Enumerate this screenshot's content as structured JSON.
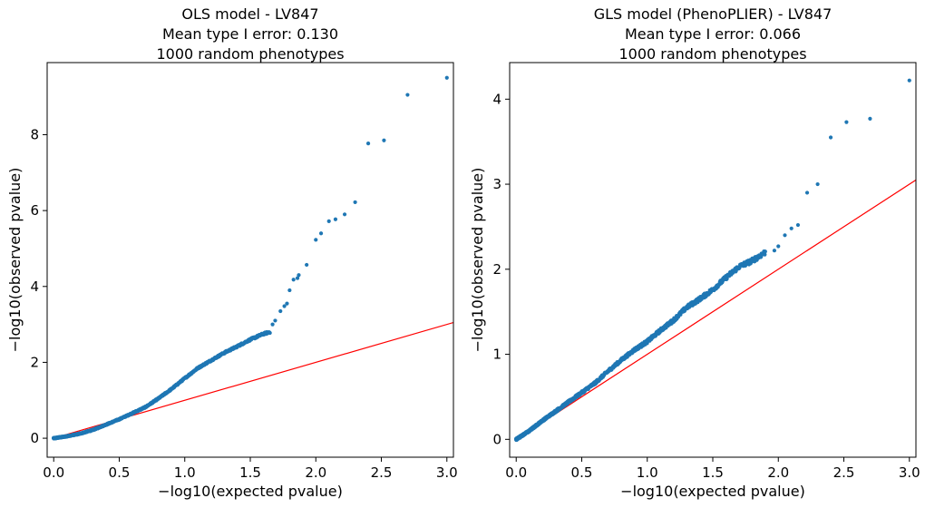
{
  "chart_data": [
    {
      "type": "scatter",
      "title_lines": [
        "OLS model - LV847",
        "Mean type I error: 0.130",
        "1000 random phenotypes"
      ],
      "xlabel": "−log10(expected pvalue)",
      "ylabel": "−log10(observed pvalue)",
      "xlim": [
        -0.05,
        3.05
      ],
      "ylim": [
        -0.5,
        9.9
      ],
      "xticks": [
        0,
        0.5,
        1,
        1.5,
        2,
        2.5,
        3
      ],
      "xtick_labels": [
        "0.0",
        "0.5",
        "1.0",
        "1.5",
        "2.0",
        "2.5",
        "3.0"
      ],
      "yticks": [
        0,
        2,
        4,
        6,
        8
      ],
      "ytick_labels": [
        "0",
        "2",
        "4",
        "6",
        "8"
      ],
      "grid": false,
      "reference_line": {
        "color": "#ff0000",
        "from": [
          0,
          0
        ],
        "to": [
          3.05,
          3.05
        ]
      },
      "point_color": "#1f77b4",
      "curve": [
        [
          0,
          0
        ],
        [
          0.1,
          0.05
        ],
        [
          0.2,
          0.12
        ],
        [
          0.3,
          0.22
        ],
        [
          0.4,
          0.36
        ],
        [
          0.5,
          0.5
        ],
        [
          0.6,
          0.66
        ],
        [
          0.7,
          0.82
        ],
        [
          0.8,
          1.05
        ],
        [
          0.9,
          1.3
        ],
        [
          1.0,
          1.58
        ],
        [
          1.1,
          1.85
        ],
        [
          1.2,
          2.05
        ],
        [
          1.3,
          2.25
        ],
        [
          1.4,
          2.42
        ],
        [
          1.5,
          2.6
        ],
        [
          1.6,
          2.75
        ],
        [
          1.65,
          2.8
        ]
      ],
      "tail": [
        [
          1.67,
          3.0
        ],
        [
          1.69,
          3.1
        ],
        [
          1.73,
          3.35
        ],
        [
          1.76,
          3.48
        ],
        [
          1.78,
          3.55
        ],
        [
          1.8,
          3.9
        ],
        [
          1.83,
          4.18
        ],
        [
          1.86,
          4.22
        ],
        [
          1.87,
          4.3
        ],
        [
          1.93,
          4.57
        ],
        [
          2.0,
          5.23
        ],
        [
          2.04,
          5.4
        ],
        [
          2.1,
          5.72
        ],
        [
          2.15,
          5.77
        ],
        [
          2.22,
          5.9
        ],
        [
          2.3,
          6.22
        ],
        [
          2.4,
          7.77
        ],
        [
          2.52,
          7.85
        ],
        [
          2.7,
          9.05
        ],
        [
          3.0,
          9.5
        ]
      ]
    },
    {
      "type": "scatter",
      "title_lines": [
        "GLS model (PhenoPLIER) - LV847",
        "Mean type I error: 0.066",
        "1000 random phenotypes"
      ],
      "xlabel": "−log10(expected pvalue)",
      "ylabel": "−log10(observed pvalue)",
      "xlim": [
        -0.05,
        3.05
      ],
      "ylim": [
        -0.21,
        4.43
      ],
      "xticks": [
        0,
        0.5,
        1,
        1.5,
        2,
        2.5,
        3
      ],
      "xtick_labels": [
        "0.0",
        "0.5",
        "1.0",
        "1.5",
        "2.0",
        "2.5",
        "3.0"
      ],
      "yticks": [
        0,
        1,
        2,
        3,
        4
      ],
      "ytick_labels": [
        "0",
        "1",
        "2",
        "3",
        "4"
      ],
      "grid": false,
      "reference_line": {
        "color": "#ff0000",
        "from": [
          0,
          0
        ],
        "to": [
          3.05,
          3.05
        ]
      },
      "point_color": "#1f77b4",
      "curve": [
        [
          0,
          0
        ],
        [
          0.1,
          0.1
        ],
        [
          0.2,
          0.22
        ],
        [
          0.3,
          0.33
        ],
        [
          0.4,
          0.44
        ],
        [
          0.5,
          0.55
        ],
        [
          0.6,
          0.66
        ],
        [
          0.7,
          0.8
        ],
        [
          0.8,
          0.93
        ],
        [
          0.9,
          1.05
        ],
        [
          1.0,
          1.15
        ],
        [
          1.1,
          1.28
        ],
        [
          1.2,
          1.4
        ],
        [
          1.3,
          1.55
        ],
        [
          1.4,
          1.65
        ],
        [
          1.5,
          1.76
        ],
        [
          1.6,
          1.9
        ],
        [
          1.7,
          2.03
        ],
        [
          1.8,
          2.1
        ],
        [
          1.9,
          2.2
        ]
      ],
      "tail": [
        [
          1.97,
          2.22
        ],
        [
          2.0,
          2.27
        ],
        [
          2.05,
          2.4
        ],
        [
          2.1,
          2.48
        ],
        [
          2.15,
          2.52
        ],
        [
          2.22,
          2.9
        ],
        [
          2.3,
          3.0
        ],
        [
          2.4,
          3.55
        ],
        [
          2.52,
          3.73
        ],
        [
          2.7,
          3.77
        ],
        [
          3.0,
          4.22
        ]
      ]
    }
  ]
}
